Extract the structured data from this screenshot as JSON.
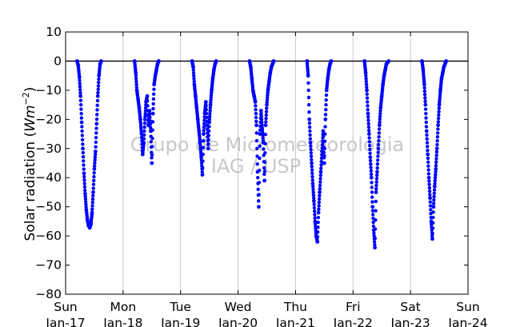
{
  "chart_data": {
    "type": "scatter",
    "ylabel_text": "Solar radiation (",
    "ylabel_unit_base": "Wm",
    "ylabel_unit_exp": "−2",
    "ylabel_close": ")",
    "ylim": [
      -80,
      10
    ],
    "yticks": [
      10,
      0,
      -10,
      -20,
      -30,
      -40,
      -50,
      -60,
      -70,
      -80
    ],
    "ytick_labels": [
      "10",
      "0",
      "−10",
      "−20",
      "−30",
      "−40",
      "−50",
      "−60",
      "−70",
      "−80"
    ],
    "xlim": [
      0,
      7
    ],
    "xticks": [
      0,
      1,
      2,
      3,
      4,
      5,
      6,
      7
    ],
    "xtick_labels_day": [
      "Sun",
      "Mon",
      "Tue",
      "Wed",
      "Thu",
      "Fri",
      "Sat",
      "Sun"
    ],
    "xtick_labels_date": [
      "Jan-17",
      "Jan-18",
      "Jan-19",
      "Jan-20",
      "Jan-21",
      "Jan-22",
      "Jan-23",
      "Jan-24"
    ],
    "grid": "vertical",
    "zero_line": true,
    "marker_color": "#0000ff",
    "watermark_line1": "Grupo de Micrometeorologia",
    "watermark_line2": "IAG / USP",
    "series": [
      {
        "points": [
          [
            0.2,
            0.0
          ],
          [
            0.22,
            -1.5
          ],
          [
            0.24,
            -5.5
          ],
          [
            0.26,
            -12.0
          ],
          [
            0.28,
            -21.0
          ],
          [
            0.3,
            -30.0
          ],
          [
            0.32,
            -38.5
          ],
          [
            0.34,
            -45.5
          ],
          [
            0.36,
            -51.0
          ],
          [
            0.38,
            -54.5
          ],
          [
            0.4,
            -56.5
          ],
          [
            0.42,
            -57.2
          ],
          [
            0.44,
            -56.0
          ],
          [
            0.46,
            -52.0
          ],
          [
            0.48,
            -45.0
          ],
          [
            0.5,
            -37.0
          ],
          [
            0.52,
            -31.0
          ],
          [
            0.54,
            -21.5
          ],
          [
            0.56,
            -12.0
          ],
          [
            0.58,
            -5.0
          ],
          [
            0.6,
            -1.0
          ],
          [
            0.62,
            0.0
          ]
        ]
      },
      {
        "points": [
          [
            1.2,
            0.0
          ],
          [
            1.22,
            -4.0
          ],
          [
            1.24,
            -10.0
          ],
          [
            1.26,
            -13.0
          ],
          [
            1.28,
            -16.0
          ],
          [
            1.3,
            -20.0
          ],
          [
            1.32,
            -25.0
          ],
          [
            1.34,
            -32.0
          ],
          [
            1.36,
            -28.0
          ],
          [
            1.38,
            -20.0
          ],
          [
            1.4,
            -14.0
          ],
          [
            1.42,
            -12.0
          ],
          [
            1.44,
            -22.0
          ],
          [
            1.46,
            -17.0
          ],
          [
            1.48,
            -24.0
          ],
          [
            1.5,
            -35.0
          ],
          [
            1.52,
            -18.0
          ],
          [
            1.54,
            -8.0
          ],
          [
            1.56,
            -5.0
          ],
          [
            1.58,
            -3.0
          ],
          [
            1.6,
            -1.0
          ],
          [
            1.62,
            0.0
          ]
        ]
      },
      {
        "points": [
          [
            2.2,
            0.0
          ],
          [
            2.22,
            -2.0
          ],
          [
            2.24,
            -8.0
          ],
          [
            2.26,
            -12.0
          ],
          [
            2.28,
            -16.0
          ],
          [
            2.3,
            -20.0
          ],
          [
            2.32,
            -24.0
          ],
          [
            2.34,
            -28.0
          ],
          [
            2.36,
            -33.0
          ],
          [
            2.38,
            -39.0
          ],
          [
            2.4,
            -25.0
          ],
          [
            2.42,
            -18.0
          ],
          [
            2.44,
            -14.0
          ],
          [
            2.46,
            -22.0
          ],
          [
            2.48,
            -30.0
          ],
          [
            2.5,
            -21.0
          ],
          [
            2.52,
            -15.0
          ],
          [
            2.54,
            -10.0
          ],
          [
            2.56,
            -6.0
          ],
          [
            2.58,
            -3.0
          ],
          [
            2.6,
            -1.0
          ],
          [
            2.62,
            0.0
          ]
        ]
      },
      {
        "points": [
          [
            3.2,
            0.0
          ],
          [
            3.22,
            -2.0
          ],
          [
            3.24,
            -6.0
          ],
          [
            3.26,
            -10.0
          ],
          [
            3.28,
            -12.0
          ],
          [
            3.3,
            -14.0
          ],
          [
            3.32,
            -22.0
          ],
          [
            3.34,
            -38.0
          ],
          [
            3.36,
            -50.0
          ],
          [
            3.38,
            -25.0
          ],
          [
            3.4,
            -17.0
          ],
          [
            3.42,
            -23.0
          ],
          [
            3.44,
            -28.0
          ],
          [
            3.46,
            -41.0
          ],
          [
            3.48,
            -22.0
          ],
          [
            3.5,
            -15.0
          ],
          [
            3.52,
            -10.0
          ],
          [
            3.54,
            -7.0
          ],
          [
            3.56,
            -4.0
          ],
          [
            3.58,
            -2.0
          ],
          [
            3.6,
            -1.0
          ],
          [
            3.62,
            0.0
          ]
        ]
      },
      {
        "points": [
          [
            4.2,
            0.0
          ],
          [
            4.22,
            -5.0
          ],
          [
            4.24,
            -20.0
          ],
          [
            4.26,
            -28.0
          ],
          [
            4.28,
            -35.0
          ],
          [
            4.3,
            -42.0
          ],
          [
            4.32,
            -48.0
          ],
          [
            4.34,
            -55.0
          ],
          [
            4.36,
            -60.0
          ],
          [
            4.38,
            -62.0
          ],
          [
            4.4,
            -52.0
          ],
          [
            4.42,
            -45.0
          ],
          [
            4.44,
            -38.0
          ],
          [
            4.46,
            -31.0
          ],
          [
            4.48,
            -24.0
          ],
          [
            4.5,
            -35.0
          ],
          [
            4.52,
            -20.0
          ],
          [
            4.54,
            -10.0
          ],
          [
            4.56,
            -6.0
          ],
          [
            4.58,
            -3.0
          ],
          [
            4.6,
            -1.0
          ],
          [
            4.62,
            0.0
          ]
        ]
      },
      {
        "points": [
          [
            5.2,
            0.0
          ],
          [
            5.22,
            -4.0
          ],
          [
            5.24,
            -10.0
          ],
          [
            5.26,
            -18.0
          ],
          [
            5.28,
            -25.0
          ],
          [
            5.3,
            -33.0
          ],
          [
            5.32,
            -40.0
          ],
          [
            5.34,
            -50.0
          ],
          [
            5.36,
            -58.0
          ],
          [
            5.38,
            -64.0
          ],
          [
            5.4,
            -45.0
          ],
          [
            5.42,
            -38.0
          ],
          [
            5.44,
            -30.0
          ],
          [
            5.46,
            -22.0
          ],
          [
            5.48,
            -16.0
          ],
          [
            5.5,
            -12.0
          ],
          [
            5.52,
            -8.0
          ],
          [
            5.54,
            -5.0
          ],
          [
            5.56,
            -3.0
          ],
          [
            5.58,
            -1.0
          ],
          [
            5.6,
            -0.5
          ],
          [
            5.62,
            0.0
          ]
        ]
      },
      {
        "points": [
          [
            6.2,
            0.0
          ],
          [
            6.22,
            -3.0
          ],
          [
            6.24,
            -8.0
          ],
          [
            6.26,
            -15.0
          ],
          [
            6.28,
            -24.0
          ],
          [
            6.3,
            -32.0
          ],
          [
            6.32,
            -40.0
          ],
          [
            6.34,
            -47.0
          ],
          [
            6.36,
            -55.0
          ],
          [
            6.38,
            -61.0
          ],
          [
            6.4,
            -50.0
          ],
          [
            6.42,
            -43.0
          ],
          [
            6.44,
            -37.0
          ],
          [
            6.46,
            -30.0
          ],
          [
            6.48,
            -22.0
          ],
          [
            6.5,
            -15.0
          ],
          [
            6.52,
            -10.0
          ],
          [
            6.54,
            -6.0
          ],
          [
            6.56,
            -4.0
          ],
          [
            6.58,
            -2.0
          ],
          [
            6.6,
            -1.0
          ],
          [
            6.62,
            0.0
          ]
        ]
      }
    ]
  }
}
